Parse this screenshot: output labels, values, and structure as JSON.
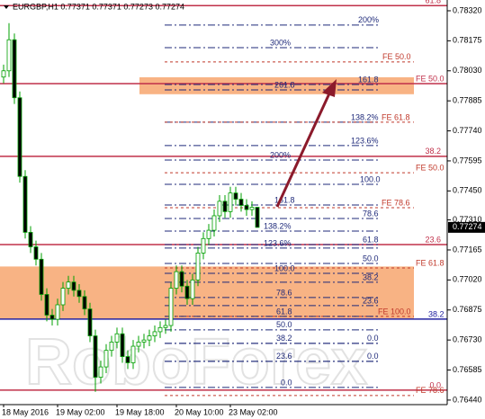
{
  "chart_data": {
    "type": "candlestick",
    "title": "EURGBP,H1  0.77371 0.77371 0.77273 0.77274",
    "watermark": "RoboForex",
    "categories": [
      "18 May 2016",
      null,
      null,
      null,
      null,
      null,
      null,
      null,
      null,
      null,
      "19 May 02:00",
      null,
      null,
      null,
      null,
      null,
      null,
      null,
      null,
      null,
      null,
      "19 May 18:00",
      null,
      null,
      null,
      null,
      null,
      null,
      null,
      null,
      null,
      null,
      "20 May 10:00",
      null,
      null,
      null,
      null,
      null,
      null,
      null,
      null,
      null,
      "23 May 02:00",
      null,
      null,
      null,
      null,
      null
    ],
    "open": [
      0.78,
      0.7803,
      0.7818,
      0.779,
      0.7752,
      0.7725,
      0.7718,
      0.7712,
      0.7695,
      0.7685,
      0.7683,
      0.769,
      0.7698,
      0.7701,
      0.7697,
      0.7694,
      0.7688,
      0.7675,
      0.7655,
      0.766,
      0.7668,
      0.7672,
      0.7676,
      0.7665,
      0.7662,
      0.767,
      0.7672,
      0.7673,
      0.7675,
      0.7677,
      0.7679,
      0.768,
      0.7698,
      0.7706,
      0.7699,
      0.7693,
      0.7702,
      0.7715,
      0.7722,
      0.7726,
      0.7733,
      0.774,
      0.7735,
      0.7744,
      0.7741,
      0.7738,
      0.7736,
      0.77371
    ],
    "high": [
      0.7806,
      0.7826,
      0.7821,
      0.7793,
      0.7755,
      0.7728,
      0.7721,
      0.7715,
      0.7698,
      0.7688,
      0.7693,
      0.7701,
      0.7704,
      0.7704,
      0.77,
      0.7697,
      0.7691,
      0.7678,
      0.7663,
      0.7671,
      0.7675,
      0.7679,
      0.7679,
      0.7668,
      0.7673,
      0.7675,
      0.7676,
      0.7678,
      0.768,
      0.7682,
      0.7683,
      0.7701,
      0.7709,
      0.7709,
      0.7702,
      0.7705,
      0.7718,
      0.7725,
      0.7729,
      0.7736,
      0.7743,
      0.7743,
      0.7747,
      0.7747,
      0.7744,
      0.7741,
      0.774,
      0.77371
    ],
    "low": [
      0.7797,
      0.78,
      0.7787,
      0.7749,
      0.7722,
      0.7715,
      0.7709,
      0.7692,
      0.7682,
      0.768,
      0.768,
      0.7687,
      0.7695,
      0.7694,
      0.7691,
      0.7685,
      0.7672,
      0.7648,
      0.7652,
      0.7657,
      0.7665,
      0.7669,
      0.7662,
      0.7659,
      0.7659,
      0.7667,
      0.7669,
      0.767,
      0.7672,
      0.7674,
      0.7676,
      0.7677,
      0.7695,
      0.7696,
      0.769,
      0.769,
      0.7699,
      0.7712,
      0.7719,
      0.7723,
      0.773,
      0.7732,
      0.7732,
      0.7738,
      0.7735,
      0.7733,
      0.7733,
      0.77273
    ],
    "close": [
      0.7803,
      0.7818,
      0.779,
      0.7752,
      0.7725,
      0.7718,
      0.7712,
      0.7695,
      0.7685,
      0.7683,
      0.769,
      0.7698,
      0.7701,
      0.7697,
      0.7694,
      0.7688,
      0.7675,
      0.7655,
      0.766,
      0.7668,
      0.7672,
      0.7676,
      0.7665,
      0.7662,
      0.767,
      0.7672,
      0.7673,
      0.7675,
      0.7677,
      0.7679,
      0.768,
      0.7698,
      0.7706,
      0.7699,
      0.7693,
      0.7702,
      0.7715,
      0.7722,
      0.7726,
      0.7733,
      0.774,
      0.7735,
      0.7744,
      0.7741,
      0.7738,
      0.7736,
      0.77371,
      0.77274
    ],
    "up_color": "#00a000",
    "down_color": "#000000",
    "ylim": [
      0.76418,
      0.78372
    ],
    "yticks": [
      {
        "value": 0.7832,
        "label": "0.78320"
      },
      0.78175,
      {
        "value": 0.7803,
        "label": "0.78030"
      },
      0.77885,
      {
        "value": 0.7774,
        "label": "0.77740"
      },
      0.77595,
      {
        "value": 0.7745,
        "label": "0.77450"
      },
      {
        "value": 0.7731,
        "label": "0.77310"
      },
      0.77165,
      {
        "value": 0.7702,
        "label": "0.77020"
      },
      0.76875,
      {
        "value": 0.7673,
        "label": "0.76730"
      },
      0.76585,
      {
        "value": 0.7644,
        "label": "0.76440"
      }
    ],
    "zones": [
      {
        "top": 0.77999,
        "bottom": 0.77917,
        "color": "#f7a66e"
      },
      {
        "top": 0.77085,
        "bottom": 0.76831,
        "color": "#f7a66e"
      }
    ],
    "levels": [
      {
        "label": "61.8",
        "price": 0.78345,
        "style": "solid"
      },
      {
        "label": "200%",
        "price": 0.78251,
        "style": "fib"
      },
      {
        "label": "300%",
        "price": 0.78142,
        "style": "fib"
      },
      {
        "label": "FE 50.0",
        "price": 0.78073,
        "style": "fe"
      },
      {
        "label": "FE 50.0",
        "price": 0.77968,
        "style": "solid"
      },
      {
        "label": "161.8",
        "price": 0.77964,
        "style": "fib"
      },
      {
        "label": "261.8",
        "price": 0.77938,
        "style": "fib"
      },
      {
        "label": "138.2%",
        "price": 0.77782,
        "style": "fib"
      },
      {
        "label": "FE 61.8",
        "price": 0.77782,
        "style": "fe"
      },
      {
        "label": "123.6%",
        "price": 0.77669,
        "style": "fib"
      },
      {
        "label": "38.2",
        "price": 0.77617,
        "style": "solid"
      },
      {
        "label": "200%",
        "price": 0.77599,
        "style": "fib"
      },
      {
        "label": "FE 50.0",
        "price": 0.77538,
        "style": "fe"
      },
      {
        "label": "100.0",
        "price": 0.77482,
        "style": "fib"
      },
      {
        "label": "161.8",
        "price": 0.77382,
        "style": "fib"
      },
      {
        "label": "FE 78.6",
        "price": 0.77369,
        "style": "fe"
      },
      {
        "label": "78.6",
        "price": 0.77317,
        "style": "fib"
      },
      {
        "label": "138.2%",
        "price": 0.77256,
        "style": "fib"
      },
      {
        "label": "23.6",
        "price": 0.77191,
        "style": "solid"
      },
      {
        "label": "61.8",
        "price": 0.77191,
        "style": "fib"
      },
      {
        "label": "123.6%",
        "price": 0.77174,
        "style": "fib"
      },
      {
        "label": "50.0",
        "price": 0.771,
        "style": "fib"
      },
      {
        "label": "FE 61.8",
        "price": 0.77078,
        "style": "fe"
      },
      {
        "label": "100.0",
        "price": 0.77052,
        "style": "fib"
      },
      {
        "label": "38.2",
        "price": 0.77009,
        "style": "fib"
      },
      {
        "label": "78.6",
        "price": 0.76935,
        "style": "fib"
      },
      {
        "label": "23.6",
        "price": 0.76896,
        "style": "fib"
      },
      {
        "label": "FE 100.0",
        "price": 0.76844,
        "style": "fe"
      },
      {
        "label": "61.8",
        "price": 0.76844,
        "style": "fib"
      },
      {
        "label": "38.2",
        "price": 0.76831,
        "style": "blue"
      },
      {
        "label": "50.0",
        "price": 0.76779,
        "style": "fib"
      },
      {
        "label": "38.2",
        "price": 0.76714,
        "style": "fib"
      },
      {
        "label": "0.0",
        "price": 0.76714,
        "style": "fib"
      },
      {
        "label": "23.6",
        "price": 0.76627,
        "style": "fib"
      },
      {
        "label": "0.0",
        "price": 0.76627,
        "style": "fib"
      },
      {
        "label": "0.0",
        "price": 0.76501,
        "style": "fib"
      },
      {
        "label": "0.0",
        "price": 0.76488,
        "style": "solid"
      },
      {
        "label": "FE 78.6",
        "price": 0.76462,
        "style": "fe"
      }
    ]
  }
}
